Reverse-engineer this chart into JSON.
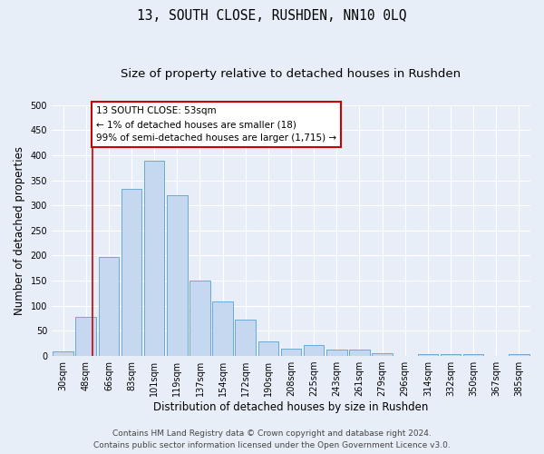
{
  "title": "13, SOUTH CLOSE, RUSHDEN, NN10 0LQ",
  "subtitle": "Size of property relative to detached houses in Rushden",
  "xlabel": "Distribution of detached houses by size in Rushden",
  "ylabel": "Number of detached properties",
  "categories": [
    "30sqm",
    "48sqm",
    "66sqm",
    "83sqm",
    "101sqm",
    "119sqm",
    "137sqm",
    "154sqm",
    "172sqm",
    "190sqm",
    "208sqm",
    "225sqm",
    "243sqm",
    "261sqm",
    "279sqm",
    "296sqm",
    "314sqm",
    "332sqm",
    "350sqm",
    "367sqm",
    "385sqm"
  ],
  "bar_heights": [
    10,
    78,
    197,
    332,
    388,
    320,
    150,
    108,
    72,
    29,
    15,
    21,
    12,
    12,
    5,
    0,
    4,
    3,
    4,
    0,
    3
  ],
  "bar_color": "#c5d8f0",
  "bar_edge_color": "#6aaad4",
  "annotation_text_line1": "13 SOUTH CLOSE: 53sqm",
  "annotation_text_line2": "← 1% of detached houses are smaller (18)",
  "annotation_text_line3": "99% of semi-detached houses are larger (1,715) →",
  "annotation_box_facecolor": "#ffffff",
  "annotation_box_edgecolor": "#cc0000",
  "vline_color": "#cc0000",
  "vline_x": 1.3,
  "ylim": [
    0,
    500
  ],
  "yticks": [
    0,
    50,
    100,
    150,
    200,
    250,
    300,
    350,
    400,
    450,
    500
  ],
  "footer_line1": "Contains HM Land Registry data © Crown copyright and database right 2024.",
  "footer_line2": "Contains public sector information licensed under the Open Government Licence v3.0.",
  "bg_color": "#e8eef8",
  "axes_bg_color": "#e8eef8",
  "title_fontsize": 10.5,
  "subtitle_fontsize": 9.5,
  "tick_fontsize": 7,
  "ylabel_fontsize": 8.5,
  "xlabel_fontsize": 8.5,
  "footer_fontsize": 6.5,
  "annot_fontsize": 7.5
}
